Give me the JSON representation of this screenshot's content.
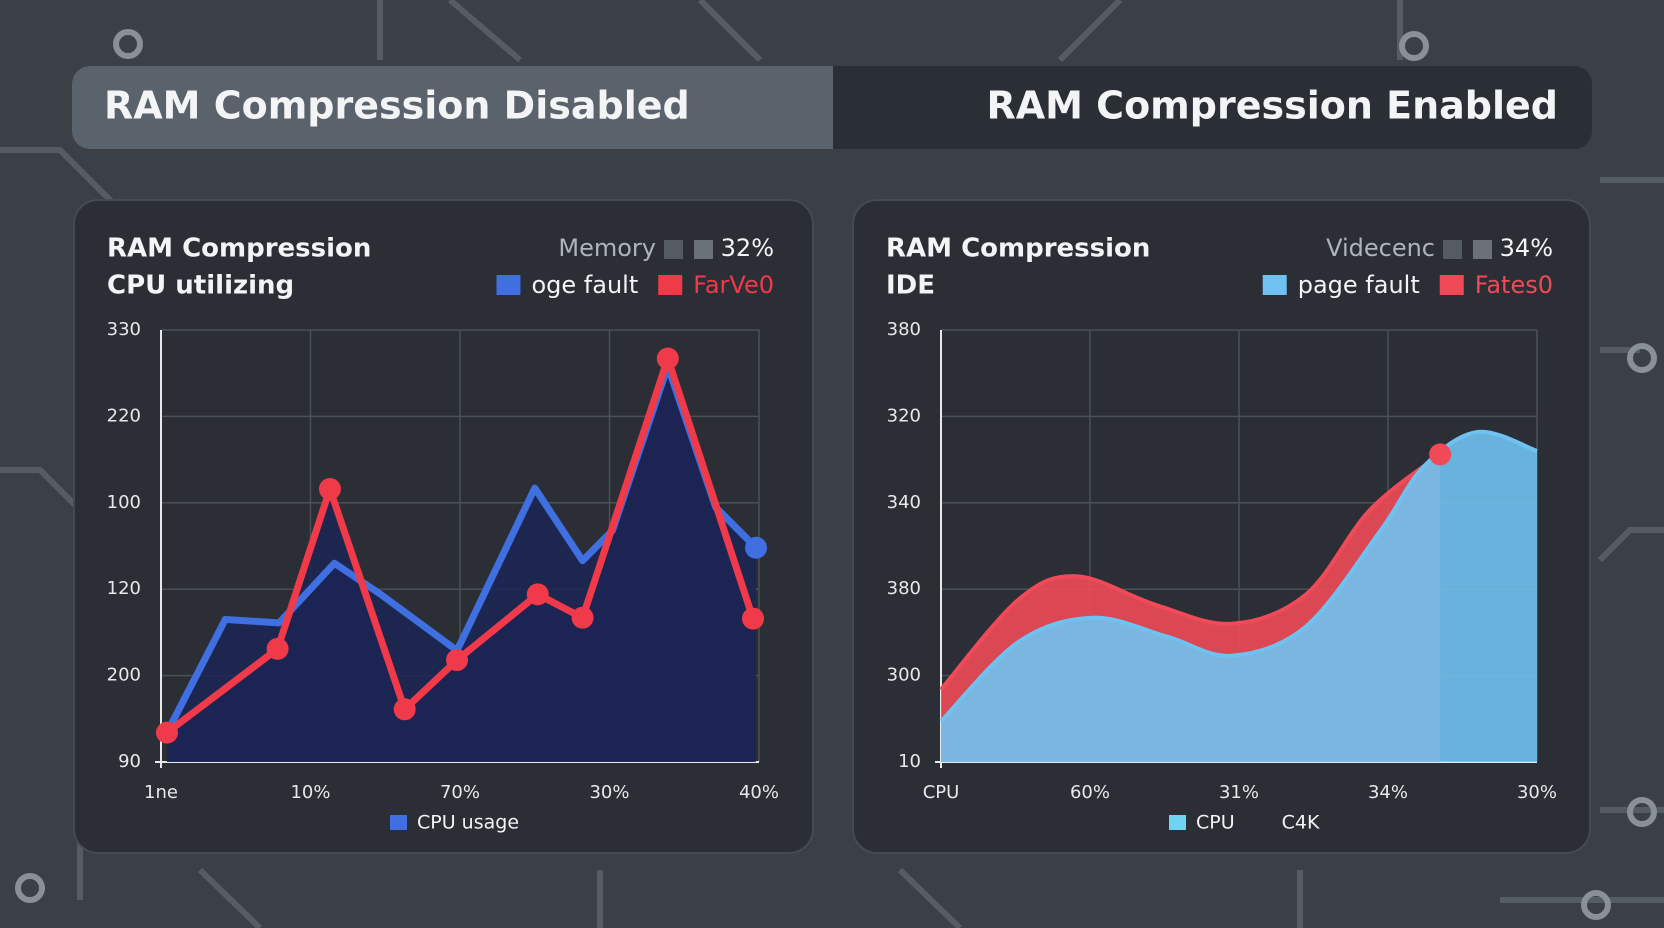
{
  "header": {
    "left": "RAM Compression Disabled",
    "right": "RAM Compression Enabled"
  },
  "chart_data": [
    {
      "type": "line",
      "title": "RAM Compression",
      "subtitle": "CPU utilizing",
      "stat_label": "Memory",
      "stat_value": "32%",
      "bottom_legend": [
        "CPU usage"
      ],
      "bottom_legend_color": "#3f6fe0",
      "area_fill": "#1b2553",
      "smooth": false,
      "grid": true,
      "xlim": [
        0,
        4
      ],
      "xticks": [
        {
          "value": 0,
          "label": "1ne"
        },
        {
          "value": 1,
          "label": "10%"
        },
        {
          "value": 2,
          "label": "70%"
        },
        {
          "value": 3,
          "label": "30%"
        },
        {
          "value": 4,
          "label": "40%"
        }
      ],
      "ylim": [
        0,
        5
      ],
      "yticks": [
        {
          "value": 0,
          "label": "90"
        },
        {
          "value": 1,
          "label": "200"
        },
        {
          "value": 2,
          "label": "120"
        },
        {
          "value": 3,
          "label": "100"
        },
        {
          "value": 4,
          "label": "220"
        },
        {
          "value": 5,
          "label": "330"
        }
      ],
      "series": [
        {
          "name": "oge fault",
          "color": "#3f6fe0",
          "markers": "last",
          "x": [
            0.04,
            0.43,
            0.79,
            1.16,
            1.47,
            1.98,
            2.5,
            2.82,
            3.02,
            3.39,
            3.71,
            3.98
          ],
          "values": [
            0.34,
            1.65,
            1.61,
            2.3,
            1.94,
            1.29,
            3.17,
            2.33,
            2.68,
            4.58,
            2.95,
            2.48
          ]
        },
        {
          "name": "FarVe0",
          "color": "#f03a4a",
          "markers": "all",
          "x": [
            0.04,
            0.78,
            1.13,
            1.63,
            1.98,
            2.52,
            2.82,
            3.39,
            3.96
          ],
          "values": [
            0.34,
            1.31,
            3.16,
            0.61,
            1.18,
            1.94,
            1.67,
            4.67,
            1.66
          ]
        }
      ]
    },
    {
      "type": "area",
      "title": "RAM Compression",
      "subtitle": "IDE",
      "stat_label": "Videcenc",
      "stat_value": "34%",
      "bottom_legend": [
        "CPU",
        "C4K"
      ],
      "bottom_legend_color": "#6fd3f2",
      "smooth": true,
      "grid": true,
      "xlim": [
        0,
        4
      ],
      "xticks": [
        {
          "value": 0,
          "label": "CPU"
        },
        {
          "value": 1,
          "label": "60%"
        },
        {
          "value": 2,
          "label": "31%"
        },
        {
          "value": 3,
          "label": "34%"
        },
        {
          "value": 4,
          "label": "30%"
        }
      ],
      "ylim": [
        0,
        5
      ],
      "yticks": [
        {
          "value": 0,
          "label": "10"
        },
        {
          "value": 1,
          "label": "300"
        },
        {
          "value": 2,
          "label": "380"
        },
        {
          "value": 3,
          "label": "340"
        },
        {
          "value": 4,
          "label": "320"
        },
        {
          "value": 5,
          "label": "380"
        }
      ],
      "series": [
        {
          "name": "Fates0",
          "color": "#f04a58",
          "markers": "last",
          "x": [
            0,
            0.52,
            0.91,
            1.44,
            1.95,
            2.45,
            2.88,
            3.35
          ],
          "values": [
            0.84,
            1.88,
            2.15,
            1.82,
            1.6,
            1.94,
            2.92,
            3.56
          ]
        },
        {
          "name": "page fault",
          "color": "#6fc2f0",
          "markers": "none",
          "x": [
            0,
            0.52,
            1.02,
            1.52,
            1.95,
            2.45,
            2.95,
            3.24,
            3.6,
            4.0
          ],
          "values": [
            0.47,
            1.39,
            1.67,
            1.45,
            1.23,
            1.57,
            2.68,
            3.42,
            3.82,
            3.6
          ]
        }
      ]
    }
  ]
}
